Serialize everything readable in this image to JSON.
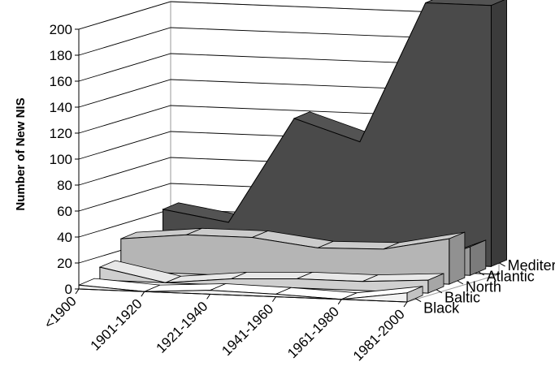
{
  "chart_data": {
    "type": "area",
    "ylabel": "Number of New NIS",
    "ylim": [
      0,
      200
    ],
    "y_ticks": [
      "0",
      "20",
      "40",
      "60",
      "80",
      "100",
      "120",
      "140",
      "160",
      "180",
      "200"
    ],
    "categories": [
      "<1900",
      "1901-1920",
      "1921-1940",
      "1941-1960",
      "1961-1980",
      "1981-2000"
    ],
    "grid": "horizontal",
    "series": [
      {
        "name": "Black",
        "color": "#f2f2f2",
        "values": [
          3,
          0,
          3,
          2,
          0,
          7
        ]
      },
      {
        "name": "Baltic",
        "color": "#cfcfcf",
        "values": [
          10,
          0,
          5,
          7,
          7,
          10
        ]
      },
      {
        "name": "North",
        "color": "#b5b5b5",
        "values": [
          25,
          30,
          30,
          24,
          25,
          35
        ]
      },
      {
        "name": "Atlantic",
        "color": "#9a9a9a",
        "values": [
          19,
          5,
          6,
          5,
          2,
          22
        ]
      },
      {
        "name": "Mediterranean",
        "color": "#4a4a4a",
        "values": [
          34,
          26,
          108,
          92,
          201,
          201
        ]
      }
    ]
  }
}
